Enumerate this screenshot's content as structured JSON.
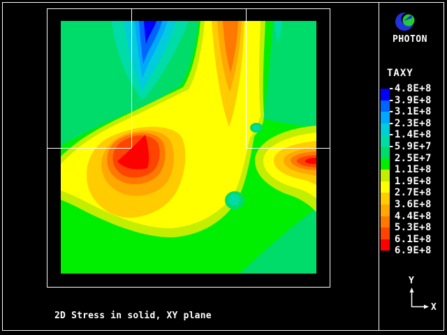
{
  "window": {
    "background": "#000000",
    "frame_color": "#ffffff"
  },
  "branding": {
    "app_name": "PHOTON",
    "logo_ring_color": "#2233dd",
    "logo_ball_color": "#22cc33"
  },
  "caption": "2D Stress in solid, XY plane",
  "axis_triad": {
    "x_label": "X",
    "y_label": "Y"
  },
  "legend": {
    "title": "TAXY",
    "labels": [
      "-4.8E+8",
      "-3.9E+8",
      "-3.1E+8",
      "-2.3E+8",
      "-1.4E+8",
      "-5.9E+7",
      " 2.5E+7",
      " 1.1E+8",
      " 1.9E+8",
      " 2.7E+8",
      " 3.6E+8",
      " 4.4E+8",
      " 5.3E+8",
      " 6.1E+8",
      " 6.9E+8"
    ]
  },
  "chart_data": {
    "type": "heatmap",
    "title": "2D Stress in solid, XY plane",
    "variable": "TAXY",
    "legend_position": "right",
    "contour_levels": [
      -480000000,
      -390000000,
      -310000000,
      -230000000,
      -140000000,
      -59000000,
      25000000,
      110000000,
      190000000,
      270000000,
      360000000,
      440000000,
      530000000,
      610000000,
      690000000
    ],
    "level_labels": [
      "-4.8E+8",
      "-3.9E+8",
      "-3.1E+8",
      "-2.3E+8",
      "-1.4E+8",
      "-5.9E+7",
      "2.5E+7",
      "1.1E+8",
      "1.9E+8",
      "2.7E+8",
      "3.6E+8",
      "4.4E+8",
      "5.3E+8",
      "6.1E+8",
      "6.9E+8"
    ],
    "palette": [
      "#0000FF",
      "#0064FF",
      "#00A8FF",
      "#00CCDC",
      "#00DCA8",
      "#00DC69",
      "#00EE00",
      "#C3EE00",
      "#FFFF00",
      "#FFCC00",
      "#FFA800",
      "#FF7800",
      "#FF4400",
      "#FF0000"
    ],
    "features": [
      {
        "name": "min-stress-plume",
        "description": "blue compressive minimum plume descending from top edge",
        "frac_x": 0.33,
        "frac_y": 0.09,
        "approx_value": -480000000
      },
      {
        "name": "max-stress-core-left",
        "description": "red tensile maximum left of center",
        "frac_x": 0.28,
        "frac_y": 0.52,
        "approx_value": 690000000
      },
      {
        "name": "max-stress-right-edge",
        "description": "red tensile maximum tongue at right edge",
        "frac_x": 0.97,
        "frac_y": 0.55,
        "approx_value": 690000000
      },
      {
        "name": "hot-plume-top",
        "description": "orange plume from top edge right of center",
        "frac_x": 0.66,
        "frac_y": 0.1,
        "approx_value": 530000000
      },
      {
        "name": "warm-arc-bottom",
        "description": "yellow-gold arc below the left maximum",
        "frac_x": 0.3,
        "frac_y": 0.75,
        "approx_value": 360000000
      }
    ]
  }
}
